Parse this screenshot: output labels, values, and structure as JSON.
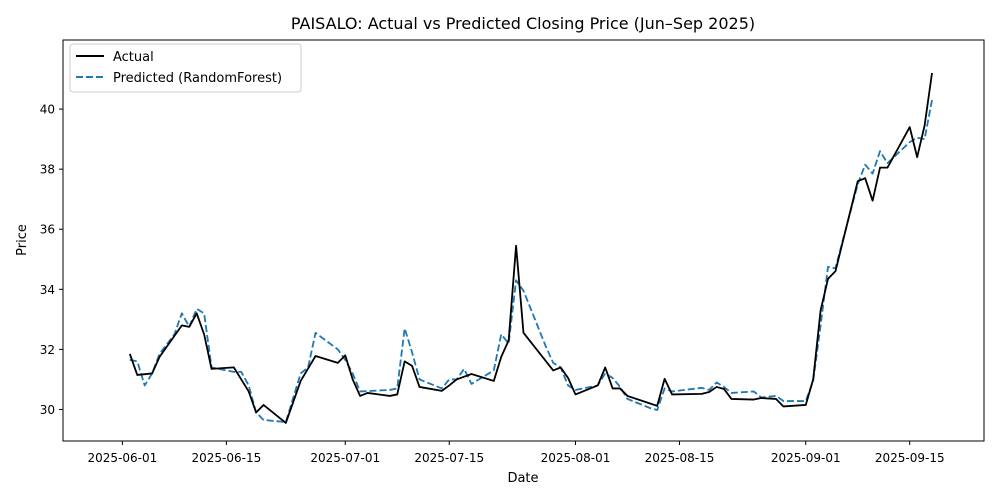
{
  "chart_data": {
    "type": "line",
    "title": "PAISALO: Actual vs Predicted Closing Price (Jun–Sep 2025)",
    "xlabel": "Date",
    "ylabel": "Price",
    "xlim": [
      "2025-05-24",
      "2025-09-25"
    ],
    "ylim": [
      28.95,
      42.3
    ],
    "x_ticks": [
      "2025-06-01",
      "2025-06-15",
      "2025-07-01",
      "2025-07-15",
      "2025-08-01",
      "2025-08-15",
      "2025-09-01",
      "2025-09-15"
    ],
    "y_ticks": [
      30,
      32,
      34,
      36,
      38,
      40
    ],
    "grid": false,
    "legend_position": "top-left",
    "series": [
      {
        "name": "Actual",
        "color": "#000000",
        "style": "solid",
        "points": [
          [
            "2025-06-02",
            31.85
          ],
          [
            "2025-06-03",
            31.15
          ],
          [
            "2025-06-05",
            31.2
          ],
          [
            "2025-06-06",
            31.75
          ],
          [
            "2025-06-09",
            32.8
          ],
          [
            "2025-06-10",
            32.75
          ],
          [
            "2025-06-11",
            33.2
          ],
          [
            "2025-06-12",
            32.5
          ],
          [
            "2025-06-13",
            31.35
          ],
          [
            "2025-06-16",
            31.4
          ],
          [
            "2025-06-18",
            30.6
          ],
          [
            "2025-06-19",
            29.9
          ],
          [
            "2025-06-20",
            30.15
          ],
          [
            "2025-06-23",
            29.55
          ],
          [
            "2025-06-25",
            30.95
          ],
          [
            "2025-06-27",
            31.78
          ],
          [
            "2025-06-30",
            31.55
          ],
          [
            "2025-07-01",
            31.8
          ],
          [
            "2025-07-02",
            31.0
          ],
          [
            "2025-07-03",
            30.45
          ],
          [
            "2025-07-04",
            30.55
          ],
          [
            "2025-07-07",
            30.45
          ],
          [
            "2025-07-08",
            30.5
          ],
          [
            "2025-07-09",
            31.6
          ],
          [
            "2025-07-10",
            31.45
          ],
          [
            "2025-07-11",
            30.75
          ],
          [
            "2025-07-14",
            30.62
          ],
          [
            "2025-07-15",
            30.8
          ],
          [
            "2025-07-16",
            31.0
          ],
          [
            "2025-07-18",
            31.18
          ],
          [
            "2025-07-21",
            30.95
          ],
          [
            "2025-07-22",
            31.75
          ],
          [
            "2025-07-23",
            32.3
          ],
          [
            "2025-07-24",
            35.45
          ],
          [
            "2025-07-25",
            32.55
          ],
          [
            "2025-07-29",
            31.3
          ],
          [
            "2025-07-30",
            31.4
          ],
          [
            "2025-07-31",
            31.05
          ],
          [
            "2025-08-01",
            30.5
          ],
          [
            "2025-08-04",
            30.8
          ],
          [
            "2025-08-05",
            31.4
          ],
          [
            "2025-08-06",
            30.7
          ],
          [
            "2025-08-07",
            30.7
          ],
          [
            "2025-08-08",
            30.45
          ],
          [
            "2025-08-12",
            30.12
          ],
          [
            "2025-08-13",
            31.02
          ],
          [
            "2025-08-14",
            30.5
          ],
          [
            "2025-08-18",
            30.52
          ],
          [
            "2025-08-19",
            30.58
          ],
          [
            "2025-08-20",
            30.75
          ],
          [
            "2025-08-21",
            30.68
          ],
          [
            "2025-08-22",
            30.35
          ],
          [
            "2025-08-25",
            30.33
          ],
          [
            "2025-08-26",
            30.38
          ],
          [
            "2025-08-28",
            30.35
          ],
          [
            "2025-08-29",
            30.1
          ],
          [
            "2025-09-01",
            30.15
          ],
          [
            "2025-09-02",
            31.0
          ],
          [
            "2025-09-03",
            33.3
          ],
          [
            "2025-09-04",
            34.35
          ],
          [
            "2025-09-05",
            34.6
          ],
          [
            "2025-09-08",
            37.6
          ],
          [
            "2025-09-09",
            37.7
          ],
          [
            "2025-09-10",
            36.95
          ],
          [
            "2025-09-11",
            38.05
          ],
          [
            "2025-09-12",
            38.05
          ],
          [
            "2025-09-15",
            39.4
          ],
          [
            "2025-09-16",
            38.4
          ],
          [
            "2025-09-17",
            39.45
          ],
          [
            "2025-09-18",
            41.2
          ]
        ]
      },
      {
        "name": "Predicted (RandomForest)",
        "color": "#1f77b4",
        "style": "dashed",
        "points": [
          [
            "2025-06-02",
            31.65
          ],
          [
            "2025-06-03",
            31.6
          ],
          [
            "2025-06-04",
            30.8
          ],
          [
            "2025-06-05",
            31.2
          ],
          [
            "2025-06-06",
            31.85
          ],
          [
            "2025-06-08",
            32.5
          ],
          [
            "2025-06-09",
            33.2
          ],
          [
            "2025-06-10",
            32.75
          ],
          [
            "2025-06-11",
            33.35
          ],
          [
            "2025-06-12",
            33.2
          ],
          [
            "2025-06-13",
            31.4
          ],
          [
            "2025-06-16",
            31.25
          ],
          [
            "2025-06-17",
            31.25
          ],
          [
            "2025-06-18",
            30.8
          ],
          [
            "2025-06-19",
            29.9
          ],
          [
            "2025-06-20",
            29.65
          ],
          [
            "2025-06-23",
            29.58
          ],
          [
            "2025-06-25",
            31.2
          ],
          [
            "2025-06-26",
            31.4
          ],
          [
            "2025-06-27",
            32.55
          ],
          [
            "2025-06-30",
            32.0
          ],
          [
            "2025-07-01",
            31.65
          ],
          [
            "2025-07-02",
            31.2
          ],
          [
            "2025-07-03",
            30.6
          ],
          [
            "2025-07-07",
            30.65
          ],
          [
            "2025-07-08",
            30.7
          ],
          [
            "2025-07-09",
            32.7
          ],
          [
            "2025-07-10",
            31.9
          ],
          [
            "2025-07-11",
            31.0
          ],
          [
            "2025-07-14",
            30.7
          ],
          [
            "2025-07-15",
            31.0
          ],
          [
            "2025-07-16",
            31.0
          ],
          [
            "2025-07-17",
            31.35
          ],
          [
            "2025-07-18",
            30.85
          ],
          [
            "2025-07-21",
            31.3
          ],
          [
            "2025-07-22",
            32.5
          ],
          [
            "2025-07-23",
            32.2
          ],
          [
            "2025-07-24",
            34.3
          ],
          [
            "2025-07-25",
            33.95
          ],
          [
            "2025-07-28",
            32.1
          ],
          [
            "2025-07-29",
            31.55
          ],
          [
            "2025-07-30",
            31.4
          ],
          [
            "2025-07-31",
            30.8
          ],
          [
            "2025-08-01",
            30.65
          ],
          [
            "2025-08-04",
            30.8
          ],
          [
            "2025-08-05",
            31.2
          ],
          [
            "2025-08-06",
            31.05
          ],
          [
            "2025-08-07",
            30.75
          ],
          [
            "2025-08-08",
            30.35
          ],
          [
            "2025-08-11",
            30.05
          ],
          [
            "2025-08-12",
            29.98
          ],
          [
            "2025-08-13",
            30.7
          ],
          [
            "2025-08-14",
            30.6
          ],
          [
            "2025-08-18",
            30.72
          ],
          [
            "2025-08-19",
            30.65
          ],
          [
            "2025-08-20",
            30.9
          ],
          [
            "2025-08-21",
            30.75
          ],
          [
            "2025-08-22",
            30.55
          ],
          [
            "2025-08-25",
            30.6
          ],
          [
            "2025-08-26",
            30.4
          ],
          [
            "2025-08-28",
            30.45
          ],
          [
            "2025-08-29",
            30.28
          ],
          [
            "2025-09-01",
            30.28
          ],
          [
            "2025-09-02",
            30.95
          ],
          [
            "2025-09-03",
            32.8
          ],
          [
            "2025-09-04",
            34.75
          ],
          [
            "2025-09-05",
            34.7
          ],
          [
            "2025-09-08",
            37.5
          ],
          [
            "2025-09-09",
            38.15
          ],
          [
            "2025-09-10",
            37.85
          ],
          [
            "2025-09-11",
            38.6
          ],
          [
            "2025-09-12",
            38.2
          ],
          [
            "2025-09-15",
            38.9
          ],
          [
            "2025-09-16",
            39.05
          ],
          [
            "2025-09-17",
            39.0
          ],
          [
            "2025-09-18",
            40.3
          ]
        ]
      }
    ]
  }
}
